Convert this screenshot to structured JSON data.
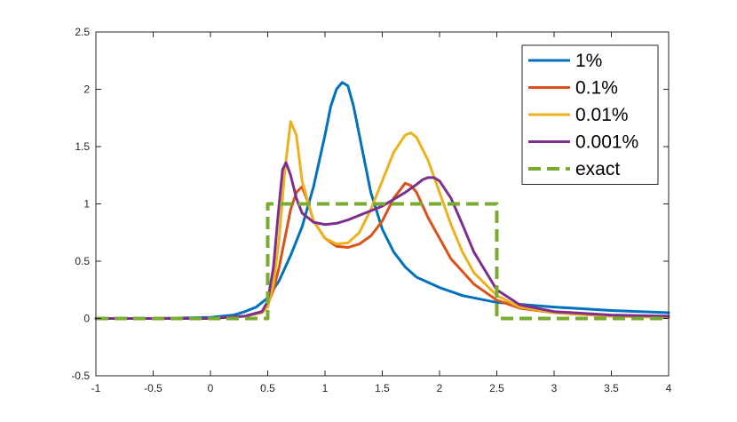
{
  "chart_data": {
    "type": "line",
    "title": "",
    "xlabel": "",
    "ylabel": "",
    "xlim": [
      -1,
      4
    ],
    "ylim": [
      -0.5,
      2.5
    ],
    "xticks": [
      -1,
      -0.5,
      0,
      0.5,
      1,
      1.5,
      2,
      2.5,
      3,
      3.5,
      4
    ],
    "xtick_labels": [
      "-1",
      "-0.5",
      "0",
      "0.5",
      "1",
      "1.5",
      "2",
      "2.5",
      "3",
      "3.5",
      "4"
    ],
    "yticks": [
      -0.5,
      0,
      0.5,
      1,
      1.5,
      2,
      2.5
    ],
    "ytick_labels": [
      "-0.5",
      "0",
      "0.5",
      "1",
      "1.5",
      "2",
      "2.5"
    ],
    "grid": false,
    "legend_position": "top-right",
    "series": [
      {
        "name": "1%",
        "color": "#0072BD",
        "style": "solid",
        "x": [
          -1,
          -0.5,
          0,
          0.2,
          0.3,
          0.4,
          0.5,
          0.6,
          0.7,
          0.8,
          0.9,
          1.0,
          1.05,
          1.1,
          1.15,
          1.2,
          1.25,
          1.3,
          1.4,
          1.5,
          1.6,
          1.7,
          1.8,
          2.0,
          2.2,
          2.5,
          3.0,
          3.5,
          4.0
        ],
        "y": [
          0,
          0,
          0.01,
          0.03,
          0.06,
          0.1,
          0.18,
          0.33,
          0.55,
          0.8,
          1.15,
          1.6,
          1.85,
          2.0,
          2.06,
          2.03,
          1.85,
          1.6,
          1.1,
          0.78,
          0.58,
          0.45,
          0.36,
          0.27,
          0.2,
          0.14,
          0.1,
          0.07,
          0.05
        ]
      },
      {
        "name": "0.1%",
        "color": "#D95319",
        "style": "solid",
        "x": [
          -1,
          0,
          0.3,
          0.45,
          0.5,
          0.55,
          0.6,
          0.65,
          0.7,
          0.75,
          0.8,
          0.85,
          0.9,
          1.0,
          1.1,
          1.2,
          1.3,
          1.4,
          1.5,
          1.6,
          1.7,
          1.75,
          1.8,
          1.9,
          2.0,
          2.1,
          2.3,
          2.5,
          2.7,
          3.0,
          3.5,
          4.0
        ],
        "y": [
          0,
          0,
          0.02,
          0.06,
          0.12,
          0.25,
          0.45,
          0.7,
          0.95,
          1.1,
          1.15,
          1.02,
          0.85,
          0.7,
          0.63,
          0.62,
          0.65,
          0.72,
          0.85,
          1.05,
          1.18,
          1.16,
          1.1,
          0.88,
          0.7,
          0.52,
          0.3,
          0.16,
          0.09,
          0.05,
          0.02,
          0.01
        ]
      },
      {
        "name": "0.01%",
        "color": "#EDB120",
        "style": "solid",
        "x": [
          -1,
          0,
          0.3,
          0.45,
          0.5,
          0.55,
          0.6,
          0.65,
          0.7,
          0.75,
          0.8,
          0.9,
          1.0,
          1.1,
          1.2,
          1.3,
          1.4,
          1.5,
          1.6,
          1.7,
          1.75,
          1.8,
          1.9,
          2.0,
          2.1,
          2.2,
          2.3,
          2.5,
          2.7,
          3.0,
          3.5,
          4.0
        ],
        "y": [
          0,
          0,
          0.02,
          0.05,
          0.1,
          0.3,
          0.7,
          1.3,
          1.72,
          1.6,
          1.2,
          0.85,
          0.7,
          0.65,
          0.66,
          0.75,
          0.95,
          1.2,
          1.45,
          1.6,
          1.62,
          1.58,
          1.38,
          1.1,
          0.82,
          0.58,
          0.4,
          0.2,
          0.1,
          0.05,
          0.02,
          0.01
        ]
      },
      {
        "name": "0.001%",
        "color": "#7E2F8E",
        "style": "solid",
        "x": [
          -1,
          0,
          0.3,
          0.45,
          0.5,
          0.55,
          0.6,
          0.63,
          0.66,
          0.7,
          0.75,
          0.8,
          0.9,
          1.0,
          1.1,
          1.2,
          1.3,
          1.4,
          1.5,
          1.6,
          1.7,
          1.8,
          1.85,
          1.9,
          1.95,
          2.0,
          2.1,
          2.2,
          2.3,
          2.5,
          2.7,
          3.0,
          3.5,
          4.0
        ],
        "y": [
          0,
          0,
          0.02,
          0.06,
          0.15,
          0.45,
          1.0,
          1.3,
          1.36,
          1.25,
          1.05,
          0.92,
          0.84,
          0.82,
          0.83,
          0.86,
          0.9,
          0.94,
          0.98,
          1.04,
          1.1,
          1.17,
          1.21,
          1.23,
          1.23,
          1.2,
          1.05,
          0.82,
          0.58,
          0.25,
          0.12,
          0.06,
          0.03,
          0.02
        ]
      },
      {
        "name": "exact",
        "color": "#77AC30",
        "style": "dashed",
        "x": [
          -1,
          0.5,
          0.5,
          2.5,
          2.5,
          4
        ],
        "y": [
          0,
          0,
          1,
          1,
          0,
          0
        ]
      }
    ]
  }
}
